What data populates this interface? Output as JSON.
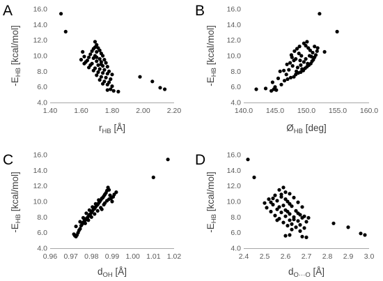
{
  "colors": {
    "marker": "#000000",
    "axis": "#a6a6a6",
    "tick_text": "#595959",
    "title_text": "#404040"
  },
  "chart_data": [
    {
      "type": "scatter",
      "panel": "A",
      "xlabel": {
        "main": "r",
        "sub": "HB",
        "unit": " [Å]"
      },
      "ylabel": {
        "prefix": "-E",
        "sub": "HB",
        "unit": " [kcal/mol]"
      },
      "xlim": [
        1.4,
        2.2
      ],
      "ylim": [
        4.0,
        16.0
      ],
      "xticks": [
        "1.40",
        "1.60",
        "1.80",
        "2.00",
        "2.20"
      ],
      "yticks": [
        "4.0",
        "6.0",
        "8.0",
        "10.0",
        "12.0",
        "14.0",
        "16.0"
      ],
      "points": [
        [
          1.47,
          15.4
        ],
        [
          1.5,
          13.1
        ],
        [
          1.98,
          7.3
        ],
        [
          2.06,
          6.7
        ],
        [
          2.11,
          5.9
        ],
        [
          2.14,
          5.7
        ],
        [
          1.69,
          11.8
        ],
        [
          1.7,
          11.4
        ],
        [
          1.69,
          11.1
        ],
        [
          1.71,
          11.0
        ],
        [
          1.68,
          10.9
        ],
        [
          1.72,
          10.7
        ],
        [
          1.7,
          10.5
        ],
        [
          1.73,
          10.3
        ],
        [
          1.66,
          10.2
        ],
        [
          1.69,
          10.0
        ],
        [
          1.74,
          10.0
        ],
        [
          1.62,
          9.9
        ],
        [
          1.65,
          9.8
        ],
        [
          1.68,
          9.7
        ],
        [
          1.72,
          9.6
        ],
        [
          1.75,
          9.5
        ],
        [
          1.6,
          9.5
        ],
        [
          1.64,
          9.4
        ],
        [
          1.7,
          9.3
        ],
        [
          1.73,
          9.2
        ],
        [
          1.76,
          9.1
        ],
        [
          1.62,
          9.0
        ],
        [
          1.67,
          9.0
        ],
        [
          1.71,
          8.8
        ],
        [
          1.74,
          8.7
        ],
        [
          1.77,
          8.6
        ],
        [
          1.65,
          8.5
        ],
        [
          1.69,
          8.4
        ],
        [
          1.72,
          8.3
        ],
        [
          1.75,
          8.2
        ],
        [
          1.78,
          8.0
        ],
        [
          1.68,
          8.1
        ],
        [
          1.71,
          7.9
        ],
        [
          1.74,
          7.8
        ],
        [
          1.77,
          7.7
        ],
        [
          1.8,
          7.6
        ],
        [
          1.7,
          7.5
        ],
        [
          1.73,
          7.3
        ],
        [
          1.76,
          7.2
        ],
        [
          1.79,
          7.0
        ],
        [
          1.72,
          6.9
        ],
        [
          1.75,
          6.7
        ],
        [
          1.78,
          6.6
        ],
        [
          1.74,
          6.4
        ],
        [
          1.77,
          6.3
        ],
        [
          1.8,
          6.1
        ],
        [
          1.77,
          5.6
        ],
        [
          1.79,
          5.7
        ],
        [
          1.81,
          5.5
        ],
        [
          1.84,
          5.4
        ],
        [
          1.63,
          9.2
        ],
        [
          1.66,
          8.8
        ],
        [
          1.61,
          10.5
        ],
        [
          1.67,
          10.6
        ],
        [
          1.7,
          9.8
        ],
        [
          1.73,
          8.9
        ]
      ]
    },
    {
      "type": "scatter",
      "panel": "B",
      "xlabel": {
        "main": "Ø",
        "sub": "HB",
        "unit": " [deg]"
      },
      "ylabel": {
        "prefix": "-E",
        "sub": "HB",
        "unit": " [kcal/mol]"
      },
      "xlim": [
        140.0,
        160.0
      ],
      "ylim": [
        4.0,
        16.0
      ],
      "xticks": [
        "140.0",
        "145.0",
        "150.0",
        "155.0",
        "160.0"
      ],
      "yticks": [
        "4.0",
        "6.0",
        "8.0",
        "10.0",
        "12.0",
        "14.0",
        "16.0"
      ],
      "points": [
        [
          152.1,
          15.4
        ],
        [
          154.9,
          13.1
        ],
        [
          152.9,
          10.5
        ],
        [
          151.3,
          11.2
        ],
        [
          151.8,
          11.0
        ],
        [
          142.0,
          5.7
        ],
        [
          143.5,
          5.8
        ],
        [
          144.4,
          5.5
        ],
        [
          144.8,
          5.7
        ],
        [
          145.2,
          5.6
        ],
        [
          146.0,
          6.3
        ],
        [
          146.5,
          6.8
        ],
        [
          147.0,
          7.0
        ],
        [
          147.5,
          7.2
        ],
        [
          148.0,
          7.3
        ],
        [
          148.3,
          7.6
        ],
        [
          148.7,
          7.8
        ],
        [
          149.1,
          7.9
        ],
        [
          149.5,
          8.1
        ],
        [
          149.8,
          8.4
        ],
        [
          150.1,
          8.6
        ],
        [
          150.4,
          8.8
        ],
        [
          150.7,
          9.0
        ],
        [
          150.9,
          9.3
        ],
        [
          151.1,
          9.5
        ],
        [
          151.3,
          9.8
        ],
        [
          151.5,
          10.1
        ],
        [
          151.0,
          10.4
        ],
        [
          150.6,
          10.7
        ],
        [
          150.3,
          11.0
        ],
        [
          149.9,
          11.3
        ],
        [
          149.6,
          11.6
        ],
        [
          150.1,
          11.8
        ],
        [
          148.9,
          11.2
        ],
        [
          148.5,
          10.9
        ],
        [
          148.1,
          10.6
        ],
        [
          148.8,
          10.3
        ],
        [
          149.2,
          10.0
        ],
        [
          147.7,
          9.8
        ],
        [
          148.3,
          9.6
        ],
        [
          149.0,
          9.4
        ],
        [
          149.6,
          9.2
        ],
        [
          150.2,
          9.0
        ],
        [
          147.4,
          9.1
        ],
        [
          146.9,
          8.9
        ],
        [
          147.8,
          8.7
        ],
        [
          148.6,
          8.5
        ],
        [
          149.3,
          8.3
        ],
        [
          146.4,
          8.1
        ],
        [
          145.8,
          8.0
        ],
        [
          147.2,
          8.2
        ],
        [
          148.4,
          8.0
        ],
        [
          146.8,
          7.6
        ],
        [
          145.5,
          7.1
        ],
        [
          144.6,
          6.6
        ],
        [
          149.9,
          9.6
        ],
        [
          150.5,
          10.0
        ],
        [
          149.1,
          8.8
        ],
        [
          148.0,
          9.4
        ],
        [
          150.8,
          9.9
        ],
        [
          145.0,
          6.0
        ],
        [
          151.7,
          10.6
        ],
        [
          147.6,
          10.1
        ]
      ]
    },
    {
      "type": "scatter",
      "panel": "C",
      "xlabel": {
        "main": "d",
        "sub": "OH",
        "unit": " [Å]"
      },
      "ylabel": {
        "prefix": "-E",
        "sub": "HB",
        "unit": " [kcal/mol]"
      },
      "xlim": [
        0.96,
        1.02
      ],
      "ylim": [
        4.0,
        16.0
      ],
      "xticks": [
        "0.96",
        "0.97",
        "0.98",
        "0.99",
        "1.00",
        "1.01",
        "1.02"
      ],
      "yticks": [
        "4.0",
        "6.0",
        "8.0",
        "10.0",
        "12.0",
        "14.0",
        "16.0"
      ],
      "points": [
        [
          1.017,
          15.4
        ],
        [
          1.01,
          13.1
        ],
        [
          0.992,
          11.2
        ],
        [
          0.991,
          10.9
        ],
        [
          0.9715,
          5.8
        ],
        [
          0.972,
          5.6
        ],
        [
          0.9725,
          5.5
        ],
        [
          0.973,
          5.7
        ],
        [
          0.9735,
          6.0
        ],
        [
          0.974,
          6.3
        ],
        [
          0.9725,
          6.8
        ],
        [
          0.9745,
          6.5
        ],
        [
          0.975,
          6.9
        ],
        [
          0.9755,
          7.1
        ],
        [
          0.976,
          7.3
        ],
        [
          0.9765,
          7.5
        ],
        [
          0.977,
          7.6
        ],
        [
          0.9775,
          7.8
        ],
        [
          0.978,
          7.9
        ],
        [
          0.9785,
          8.1
        ],
        [
          0.979,
          8.3
        ],
        [
          0.9795,
          8.4
        ],
        [
          0.98,
          8.6
        ],
        [
          0.9805,
          8.8
        ],
        [
          0.981,
          9.0
        ],
        [
          0.9815,
          9.1
        ],
        [
          0.982,
          9.3
        ],
        [
          0.9825,
          9.5
        ],
        [
          0.983,
          9.6
        ],
        [
          0.9835,
          9.8
        ],
        [
          0.984,
          10.0
        ],
        [
          0.9845,
          10.2
        ],
        [
          0.985,
          10.4
        ],
        [
          0.9855,
          10.5
        ],
        [
          0.986,
          10.7
        ],
        [
          0.9865,
          10.9
        ],
        [
          0.987,
          11.1
        ],
        [
          0.9875,
          11.4
        ],
        [
          0.988,
          11.8
        ],
        [
          0.9885,
          11.5
        ],
        [
          0.989,
          10.8
        ],
        [
          0.9895,
          10.4
        ],
        [
          0.99,
          10.0
        ],
        [
          0.9905,
          10.6
        ],
        [
          0.977,
          7.2
        ],
        [
          0.9785,
          7.6
        ],
        [
          0.98,
          8.0
        ],
        [
          0.9815,
          8.4
        ],
        [
          0.983,
          8.8
        ],
        [
          0.9845,
          9.2
        ],
        [
          0.986,
          9.6
        ],
        [
          0.9875,
          10.1
        ],
        [
          0.979,
          8.9
        ],
        [
          0.9805,
          9.3
        ],
        [
          0.982,
          9.7
        ],
        [
          0.9835,
          10.2
        ],
        [
          0.985,
          9.0
        ],
        [
          0.9865,
          9.8
        ],
        [
          0.976,
          7.9
        ],
        [
          0.9745,
          7.4
        ],
        [
          0.9775,
          8.5
        ],
        [
          0.9885,
          10.3
        ]
      ]
    },
    {
      "type": "scatter",
      "panel": "D",
      "xlabel": {
        "main": "d",
        "sub": "O···O",
        "unit": " [Å]"
      },
      "ylabel": {
        "prefix": "-E",
        "sub": "HB",
        "unit": " [kcal/mol]"
      },
      "xlim": [
        2.4,
        3.0
      ],
      "ylim": [
        4.0,
        16.0
      ],
      "xticks": [
        "2.4",
        "2.5",
        "2.6",
        "2.7",
        "2.8",
        "2.9",
        "3.0"
      ],
      "yticks": [
        "4.0",
        "6.0",
        "8.0",
        "10.0",
        "12.0",
        "14.0",
        "16.0"
      ],
      "points": [
        [
          2.42,
          15.4
        ],
        [
          2.45,
          13.1
        ],
        [
          2.83,
          7.2
        ],
        [
          2.9,
          6.7
        ],
        [
          2.96,
          5.9
        ],
        [
          2.98,
          5.7
        ],
        [
          2.59,
          11.8
        ],
        [
          2.57,
          11.5
        ],
        [
          2.6,
          11.2
        ],
        [
          2.62,
          11.0
        ],
        [
          2.55,
          10.8
        ],
        [
          2.58,
          10.6
        ],
        [
          2.64,
          10.5
        ],
        [
          2.52,
          10.3
        ],
        [
          2.56,
          10.1
        ],
        [
          2.61,
          10.0
        ],
        [
          2.66,
          9.9
        ],
        [
          2.5,
          9.8
        ],
        [
          2.54,
          9.6
        ],
        [
          2.59,
          9.5
        ],
        [
          2.63,
          9.4
        ],
        [
          2.68,
          9.3
        ],
        [
          2.51,
          9.2
        ],
        [
          2.56,
          9.0
        ],
        [
          2.6,
          8.9
        ],
        [
          2.65,
          8.8
        ],
        [
          2.53,
          8.7
        ],
        [
          2.58,
          8.6
        ],
        [
          2.62,
          8.4
        ],
        [
          2.67,
          8.3
        ],
        [
          2.55,
          8.2
        ],
        [
          2.6,
          8.1
        ],
        [
          2.64,
          8.0
        ],
        [
          2.68,
          7.9
        ],
        [
          2.57,
          7.8
        ],
        [
          2.62,
          7.6
        ],
        [
          2.66,
          7.5
        ],
        [
          2.7,
          7.4
        ],
        [
          2.59,
          7.3
        ],
        [
          2.63,
          7.1
        ],
        [
          2.67,
          7.0
        ],
        [
          2.61,
          6.9
        ],
        [
          2.65,
          6.7
        ],
        [
          2.69,
          6.6
        ],
        [
          2.63,
          6.4
        ],
        [
          2.67,
          6.2
        ],
        [
          2.6,
          5.6
        ],
        [
          2.62,
          5.7
        ],
        [
          2.68,
          5.5
        ],
        [
          2.7,
          5.4
        ],
        [
          2.53,
          9.9
        ],
        [
          2.57,
          9.3
        ],
        [
          2.61,
          8.7
        ],
        [
          2.66,
          8.5
        ],
        [
          2.54,
          10.4
        ],
        [
          2.58,
          10.9
        ],
        [
          2.62,
          9.7
        ],
        [
          2.69,
          8.1
        ],
        [
          2.56,
          7.6
        ],
        [
          2.64,
          7.7
        ],
        [
          2.71,
          7.9
        ],
        [
          2.6,
          10.3
        ]
      ]
    }
  ]
}
